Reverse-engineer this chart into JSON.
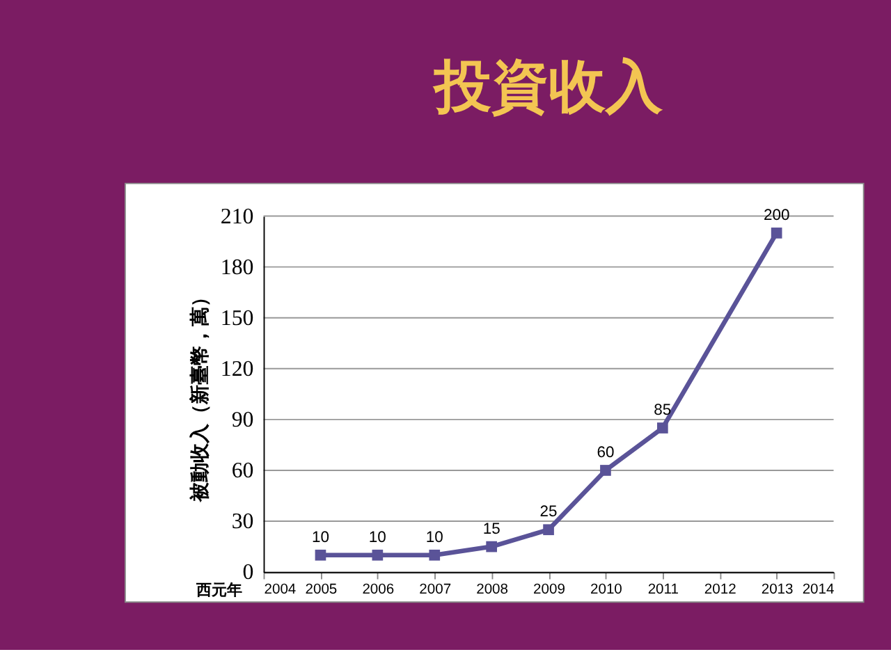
{
  "chart_data": {
    "type": "line",
    "title": "投資收入",
    "xlabel": "西元年",
    "ylabel": "被動收入（新臺幣，萬）",
    "x": [
      2005,
      2006,
      2007,
      2008,
      2009,
      2010,
      2011,
      2013
    ],
    "series": [
      {
        "color": "#5a5398",
        "values": [
          10,
          10,
          10,
          15,
          25,
          60,
          85,
          200
        ]
      }
    ],
    "xlim": [
      2004,
      2014
    ],
    "xticks": [
      2004,
      2005,
      2006,
      2007,
      2008,
      2009,
      2010,
      2011,
      2012,
      2013,
      2014
    ],
    "ylim": [
      0,
      210
    ],
    "yticks": [
      0,
      30,
      60,
      90,
      120,
      150,
      180,
      210
    ],
    "grid": "y",
    "marker": "square",
    "line_style": "solid",
    "data_labels": true
  }
}
